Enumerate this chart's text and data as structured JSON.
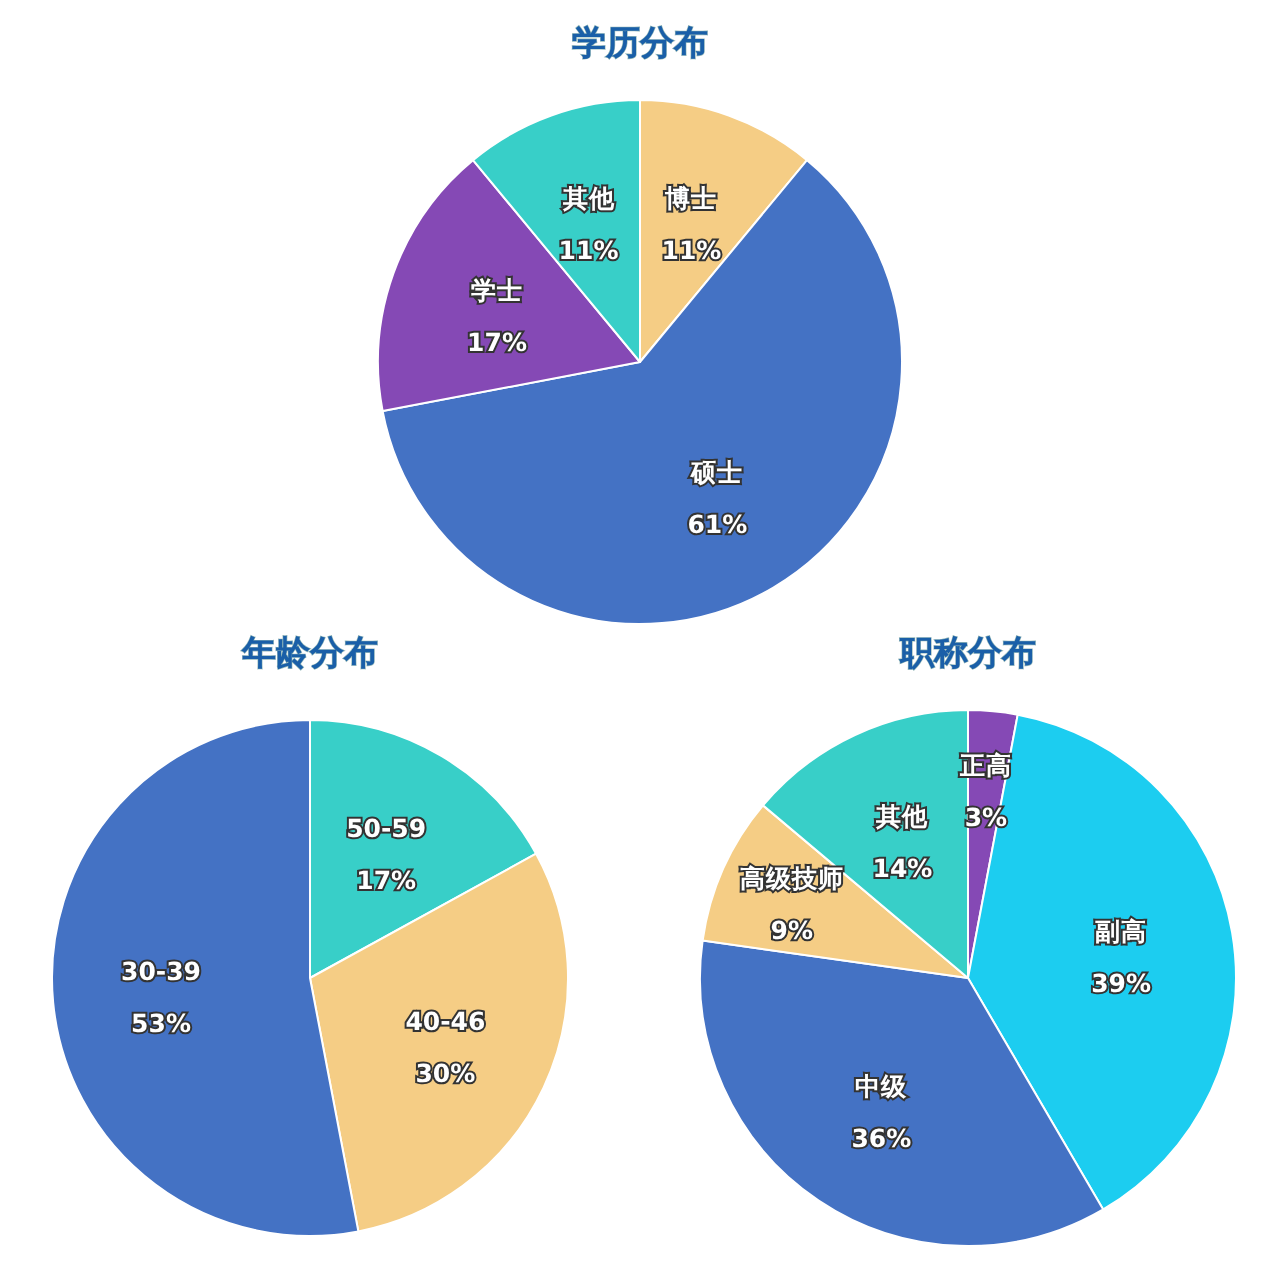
{
  "chart_data": [
    {
      "type": "pie",
      "title": "学历分布",
      "categories": [
        "博士",
        "硕士",
        "学士",
        "其他"
      ],
      "values": [
        11,
        61,
        17,
        11
      ],
      "value_labels": [
        "11%",
        "61%",
        "17%",
        "11%"
      ],
      "colors": [
        "#f5cd85",
        "#4472c4",
        "#8549b5",
        "#38cfc8"
      ]
    },
    {
      "type": "pie",
      "title": "年龄分布",
      "categories": [
        "50-59",
        "40-46",
        "30-39"
      ],
      "values": [
        17,
        30,
        53
      ],
      "value_labels": [
        "17%",
        "30%",
        "53%"
      ],
      "colors": [
        "#38cfc8",
        "#f5cd85",
        "#4472c4"
      ]
    },
    {
      "type": "pie",
      "title": "职称分布",
      "categories": [
        "正高",
        "副高",
        "中级",
        "高级技师",
        "其他"
      ],
      "values": [
        3,
        39,
        36,
        9,
        14
      ],
      "value_labels": [
        "3%",
        "39%",
        "36%",
        "9%",
        "14%"
      ],
      "colors": [
        "#8549b5",
        "#1ccdf0",
        "#4472c4",
        "#f5cd85",
        "#38cfc8"
      ]
    }
  ]
}
